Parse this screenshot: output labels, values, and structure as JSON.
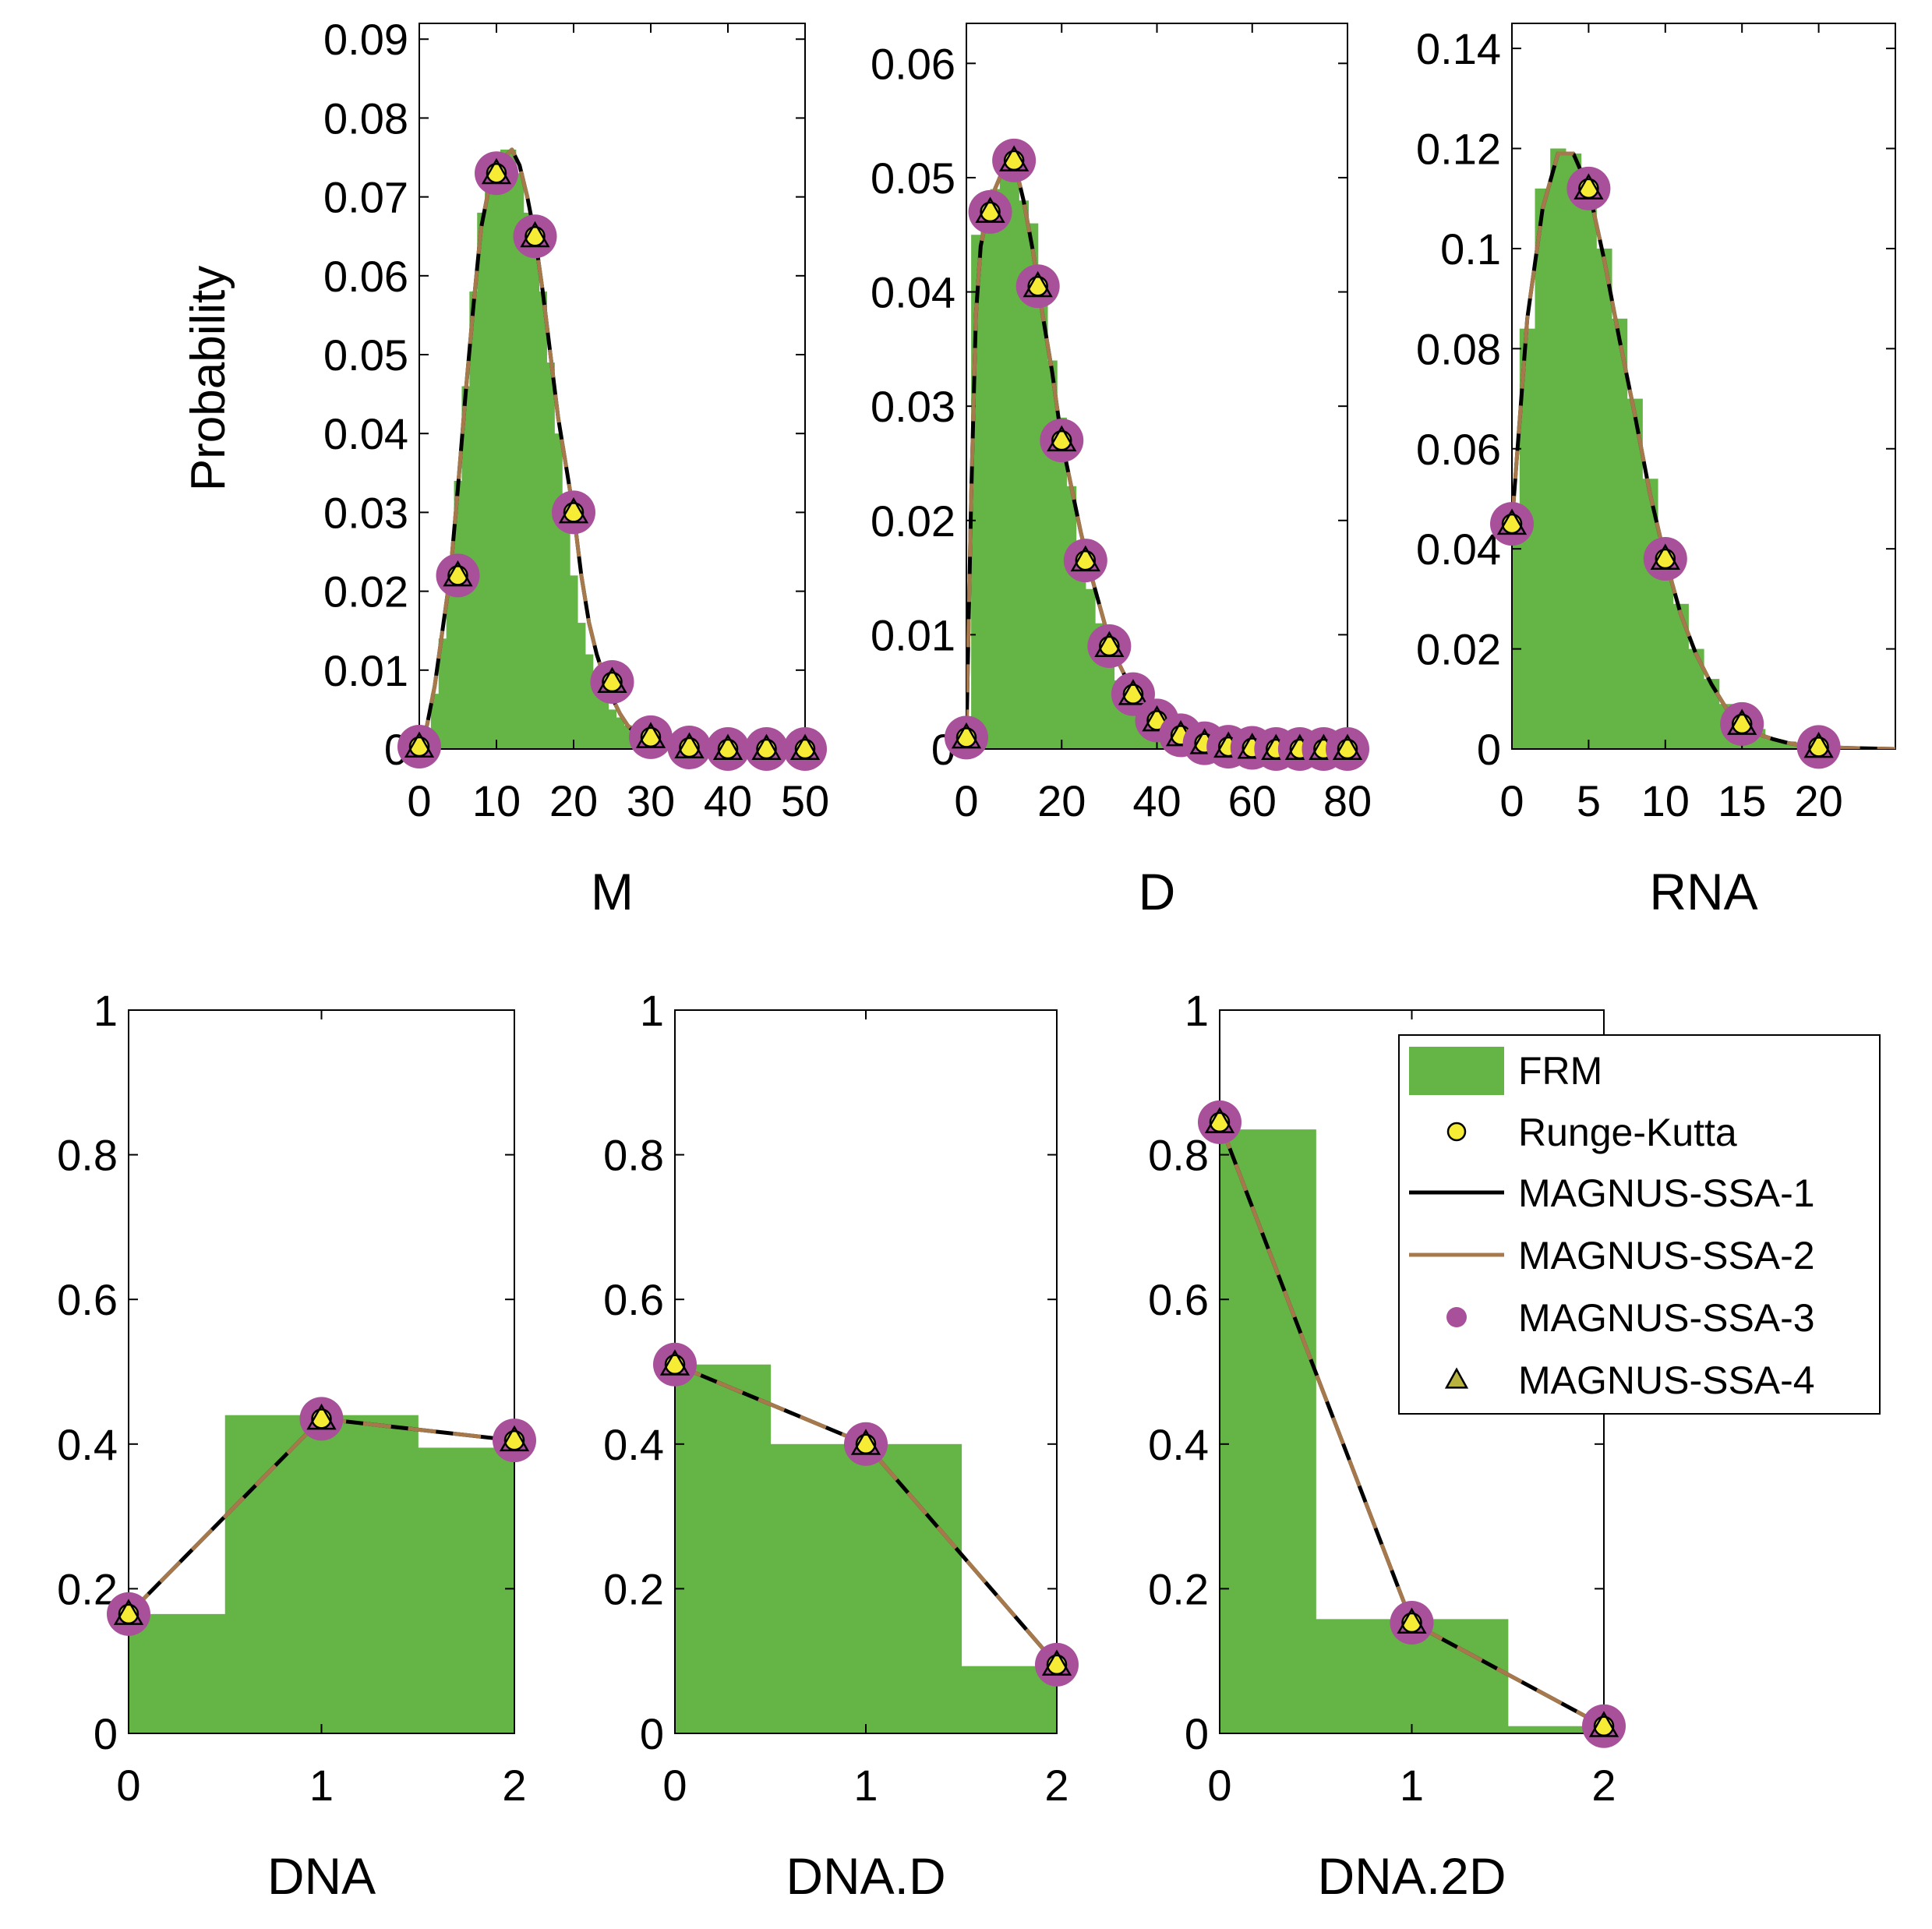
{
  "chart_data": [
    {
      "type": "bar",
      "xlabel": "M",
      "ylabel": "Probability",
      "xlim": [
        0,
        50
      ],
      "ylim": [
        0,
        0.092
      ],
      "xticks": [
        0,
        10,
        20,
        30,
        40,
        50
      ],
      "yticks": [
        0,
        0.01,
        0.02,
        0.03,
        0.04,
        0.05,
        0.06,
        0.07,
        0.08,
        0.09
      ],
      "ytick_labels": [
        "0",
        "0.01",
        "0.02",
        "0.03",
        "0.04",
        "0.05",
        "0.06",
        "0.07",
        "0.08",
        "0.09"
      ],
      "histogram": {
        "name": "FRM",
        "bin_width": 1,
        "x": [
          0,
          1,
          2,
          3,
          4,
          5,
          6,
          7,
          8,
          9,
          10,
          11,
          12,
          13,
          14,
          15,
          16,
          17,
          18,
          19,
          20,
          21,
          22,
          23,
          24,
          25,
          26,
          27,
          28,
          29,
          30,
          31,
          32,
          33,
          34,
          35
        ],
        "values": [
          0.0002,
          0.002,
          0.007,
          0.014,
          0.022,
          0.034,
          0.046,
          0.058,
          0.068,
          0.074,
          0.074,
          0.076,
          0.076,
          0.073,
          0.068,
          0.064,
          0.058,
          0.049,
          0.04,
          0.032,
          0.022,
          0.016,
          0.012,
          0.009,
          0.007,
          0.005,
          0.004,
          0.003,
          0.002,
          0.0015,
          0.001,
          0.0006,
          0.0004,
          0.0002,
          0.0001,
          0
        ]
      },
      "line_x": [
        0,
        1,
        2,
        3,
        4,
        5,
        6,
        7,
        8,
        9,
        10,
        11,
        12,
        13,
        14,
        15,
        16,
        17,
        18,
        19,
        20,
        21,
        22,
        23,
        24,
        25,
        26,
        27,
        28,
        29,
        30,
        32,
        35,
        40,
        45,
        50
      ],
      "line_y": [
        0.0003,
        0.003,
        0.008,
        0.015,
        0.022,
        0.033,
        0.045,
        0.056,
        0.066,
        0.071,
        0.073,
        0.075,
        0.076,
        0.074,
        0.07,
        0.065,
        0.058,
        0.05,
        0.042,
        0.036,
        0.03,
        0.022,
        0.016,
        0.012,
        0.009,
        0.0065,
        0.0045,
        0.003,
        0.002,
        0.0015,
        0.001,
        0.0005,
        0.0002,
        0,
        0,
        0
      ],
      "markers": {
        "x": [
          0,
          5,
          10,
          15,
          20,
          25,
          30,
          35,
          40,
          45,
          50
        ],
        "y": [
          0.0003,
          0.022,
          0.073,
          0.065,
          0.03,
          0.0085,
          0.0015,
          0.0002,
          0,
          0,
          0
        ]
      }
    },
    {
      "type": "bar",
      "xlabel": "D",
      "xlim": [
        0,
        80
      ],
      "ylim": [
        0,
        0.0635
      ],
      "xticks": [
        0,
        20,
        40,
        60,
        80
      ],
      "yticks": [
        0,
        0.01,
        0.02,
        0.03,
        0.04,
        0.05,
        0.06
      ],
      "ytick_labels": [
        "0",
        "0.01",
        "0.02",
        "0.03",
        "0.04",
        "0.05",
        "0.06"
      ],
      "histogram": {
        "name": "FRM",
        "bin_width": 2,
        "x": [
          0,
          2,
          4,
          6,
          8,
          10,
          12,
          14,
          16,
          18,
          20,
          22,
          24,
          26,
          28,
          30,
          32,
          34,
          36,
          38,
          40,
          42,
          44,
          46,
          48,
          50
        ],
        "values": [
          0.001,
          0.045,
          0.048,
          0.049,
          0.05,
          0.051,
          0.048,
          0.046,
          0.04,
          0.034,
          0.029,
          0.023,
          0.018,
          0.014,
          0.011,
          0.008,
          0.006,
          0.004,
          0.003,
          0.002,
          0.0015,
          0.001,
          0.0007,
          0.0004,
          0.0002,
          0.0001
        ]
      },
      "line_x": [
        0,
        1,
        2,
        3,
        4,
        5,
        6,
        7,
        8,
        9,
        10,
        12,
        14,
        16,
        18,
        20,
        22,
        24,
        26,
        28,
        30,
        32,
        34,
        36,
        38,
        40,
        42,
        44,
        46,
        48,
        50,
        55,
        60,
        65,
        70,
        75,
        80
      ],
      "line_y": [
        0.001,
        0.022,
        0.038,
        0.044,
        0.046,
        0.047,
        0.049,
        0.05,
        0.051,
        0.0515,
        0.0515,
        0.048,
        0.0435,
        0.038,
        0.033,
        0.027,
        0.023,
        0.019,
        0.0155,
        0.0125,
        0.0095,
        0.0075,
        0.0058,
        0.0043,
        0.0031,
        0.0023,
        0.0016,
        0.0012,
        0.0008,
        0.0005,
        0.0003,
        0.0001,
        0,
        0,
        0,
        0,
        0
      ],
      "markers": {
        "x": [
          0,
          5,
          10,
          15,
          20,
          25,
          30,
          35,
          40,
          45,
          50,
          55,
          60,
          65,
          70,
          75,
          80
        ],
        "y": [
          0.001,
          0.047,
          0.0515,
          0.0405,
          0.027,
          0.0165,
          0.009,
          0.0048,
          0.0025,
          0.0012,
          0.0005,
          0.0002,
          0.0001,
          0,
          0,
          0,
          0
        ]
      }
    },
    {
      "type": "bar",
      "xlabel": "RNA",
      "xlim": [
        0,
        25
      ],
      "ylim": [
        0,
        0.145
      ],
      "xticks": [
        0,
        5,
        10,
        15,
        20
      ],
      "yticks": [
        0,
        0.02,
        0.04,
        0.06,
        0.08,
        0.1,
        0.12,
        0.14
      ],
      "ytick_labels": [
        "0",
        "0.02",
        "0.04",
        "0.06",
        "0.08",
        "0.1",
        "0.12",
        "0.14"
      ],
      "histogram": {
        "name": "FRM",
        "bin_width": 1,
        "x": [
          0,
          1,
          2,
          3,
          4,
          5,
          6,
          7,
          8,
          9,
          10,
          11,
          12,
          13,
          14,
          15,
          16,
          17,
          18,
          19,
          20
        ],
        "values": [
          0.049,
          0.084,
          0.112,
          0.12,
          0.119,
          0.113,
          0.1,
          0.086,
          0.07,
          0.054,
          0.04,
          0.029,
          0.02,
          0.014,
          0.009,
          0.006,
          0.004,
          0.002,
          0.0015,
          0.001,
          0.0005
        ]
      },
      "line_x": [
        0,
        1,
        2,
        3,
        4,
        5,
        6,
        7,
        8,
        9,
        10,
        11,
        12,
        13,
        14,
        15,
        16,
        17,
        18,
        19,
        20,
        22,
        25
      ],
      "line_y": [
        0.045,
        0.086,
        0.108,
        0.119,
        0.119,
        0.112,
        0.098,
        0.082,
        0.067,
        0.051,
        0.038,
        0.027,
        0.019,
        0.013,
        0.008,
        0.005,
        0.003,
        0.002,
        0.0012,
        0.0007,
        0.0004,
        0.0002,
        0
      ],
      "markers": {
        "x": [
          0,
          5,
          10,
          15,
          20
        ],
        "y": [
          0.045,
          0.112,
          0.038,
          0.005,
          0.0004
        ]
      }
    },
    {
      "type": "bar",
      "xlabel": "DNA",
      "xlim": [
        0,
        2
      ],
      "ylim": [
        0,
        1
      ],
      "xticks": [
        0,
        1,
        2
      ],
      "yticks": [
        0,
        0.2,
        0.4,
        0.6,
        0.8,
        1
      ],
      "ytick_labels": [
        "0",
        "0.2",
        "0.4",
        "0.6",
        "0.8",
        "1"
      ],
      "histogram": {
        "name": "FRM",
        "bin_width": 1,
        "x": [
          0,
          1,
          2
        ],
        "values": [
          0.165,
          0.44,
          0.395
        ]
      },
      "line_x": [
        0,
        1,
        2
      ],
      "line_y": [
        0.165,
        0.435,
        0.405
      ],
      "markers": {
        "x": [
          0,
          1,
          2
        ],
        "y": [
          0.165,
          0.435,
          0.405
        ]
      }
    },
    {
      "type": "bar",
      "xlabel": "DNA.D",
      "xlim": [
        0,
        2
      ],
      "ylim": [
        0,
        1
      ],
      "xticks": [
        0,
        1,
        2
      ],
      "yticks": [
        0,
        0.2,
        0.4,
        0.6,
        0.8,
        1
      ],
      "ytick_labels": [
        "0",
        "0.2",
        "0.4",
        "0.6",
        "0.8",
        "1"
      ],
      "histogram": {
        "name": "FRM",
        "bin_width": 1,
        "x": [
          0,
          1,
          2
        ],
        "values": [
          0.51,
          0.4,
          0.093
        ]
      },
      "line_x": [
        0,
        1,
        2
      ],
      "line_y": [
        0.51,
        0.4,
        0.095
      ],
      "markers": {
        "x": [
          0,
          1,
          2
        ],
        "y": [
          0.51,
          0.4,
          0.095
        ]
      }
    },
    {
      "type": "bar",
      "xlabel": "DNA.2D",
      "xlim": [
        0,
        2
      ],
      "ylim": [
        0,
        1
      ],
      "xticks": [
        0,
        1,
        2
      ],
      "yticks": [
        0,
        0.2,
        0.4,
        0.6,
        0.8,
        1
      ],
      "ytick_labels": [
        "0",
        "0.2",
        "0.4",
        "0.6",
        "0.8",
        "1"
      ],
      "histogram": {
        "name": "FRM",
        "bin_width": 1,
        "x": [
          0,
          1,
          2
        ],
        "values": [
          0.835,
          0.158,
          0.01
        ]
      },
      "line_x": [
        0,
        1,
        2
      ],
      "line_y": [
        0.845,
        0.153,
        0.01
      ],
      "markers": {
        "x": [
          0,
          1,
          2
        ],
        "y": [
          0.845,
          0.153,
          0.01
        ]
      }
    }
  ],
  "legend": {
    "placement": "inside bottom-right panel (DNA.2D), top-right",
    "entries": [
      {
        "label": "FRM",
        "kind": "bar",
        "color": "#65b446"
      },
      {
        "label": "Runge-Kutta",
        "kind": "circle",
        "color": "#f7ec35"
      },
      {
        "label": "MAGNUS-SSA-1",
        "kind": "line",
        "color": "#000000"
      },
      {
        "label": "MAGNUS-SSA-2",
        "kind": "line",
        "color": "#a6794c"
      },
      {
        "label": "MAGNUS-SSA-3",
        "kind": "disc",
        "color": "#a8509a"
      },
      {
        "label": "MAGNUS-SSA-4",
        "kind": "triangle",
        "color": "#b7b33e"
      }
    ]
  },
  "colors": {
    "histogram": "#65b446",
    "runge_kutta": "#f7ec35",
    "ssa1": "#000000",
    "ssa2": "#a6794c",
    "ssa3": "#a8509a",
    "ssa4": "#b7b33e"
  }
}
